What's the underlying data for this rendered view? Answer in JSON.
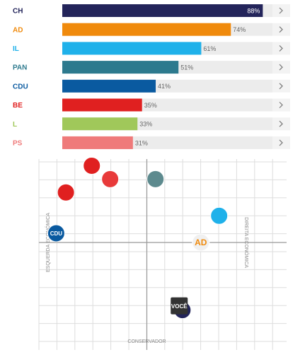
{
  "chart_data": [
    {
      "type": "bar",
      "orientation": "horizontal",
      "categories": [
        "CH",
        "AD",
        "IL",
        "PAN",
        "CDU",
        "BE",
        "L",
        "PS"
      ],
      "values": [
        88,
        74,
        61,
        51,
        41,
        35,
        33,
        31
      ],
      "value_labels": [
        "88%",
        "74%",
        "61%",
        "51%",
        "41%",
        "35%",
        "33%",
        "31%"
      ],
      "colors": [
        "#23245a",
        "#f08a0c",
        "#1fb1ea",
        "#2d7a8e",
        "#0a5aa0",
        "#e02020",
        "#a0c85a",
        "#ef7a7a"
      ],
      "xlim": [
        0,
        100
      ]
    },
    {
      "type": "scatter",
      "xlabel_left": "ESQUERDA ECONÓMICA",
      "xlabel_right": "DIREITA ECONÓMICA",
      "ylabel_bottom": "CONSERVADOR",
      "xlim": [
        -1,
        1
      ],
      "ylim": [
        -1,
        1
      ],
      "points": [
        {
          "x": -0.51,
          "y": 0.92,
          "color": "#e02020"
        },
        {
          "x": -0.34,
          "y": 0.76,
          "color": "#e83a3a"
        },
        {
          "x": -0.75,
          "y": 0.6,
          "color": "#e02020"
        },
        {
          "x": 0.08,
          "y": 0.76,
          "color": "#5d8a8e"
        },
        {
          "x": 0.67,
          "y": 0.32,
          "color": "#1fb1ea"
        },
        {
          "x": 0.5,
          "y": 0.0,
          "color": "#f0f0f0",
          "label": "AD",
          "label_color": "#f08a0c"
        },
        {
          "x": -0.84,
          "y": 0.11,
          "color": "#0a5aa0",
          "label": "CDU",
          "label_color": "#ffffff"
        },
        {
          "x": 0.33,
          "y": -0.81,
          "color": "#23245a"
        },
        {
          "x": 0.3,
          "y": -0.76,
          "color": "#333333",
          "label": "VOCÊ",
          "label_color": "#ffffff",
          "shape": "square"
        }
      ]
    }
  ]
}
